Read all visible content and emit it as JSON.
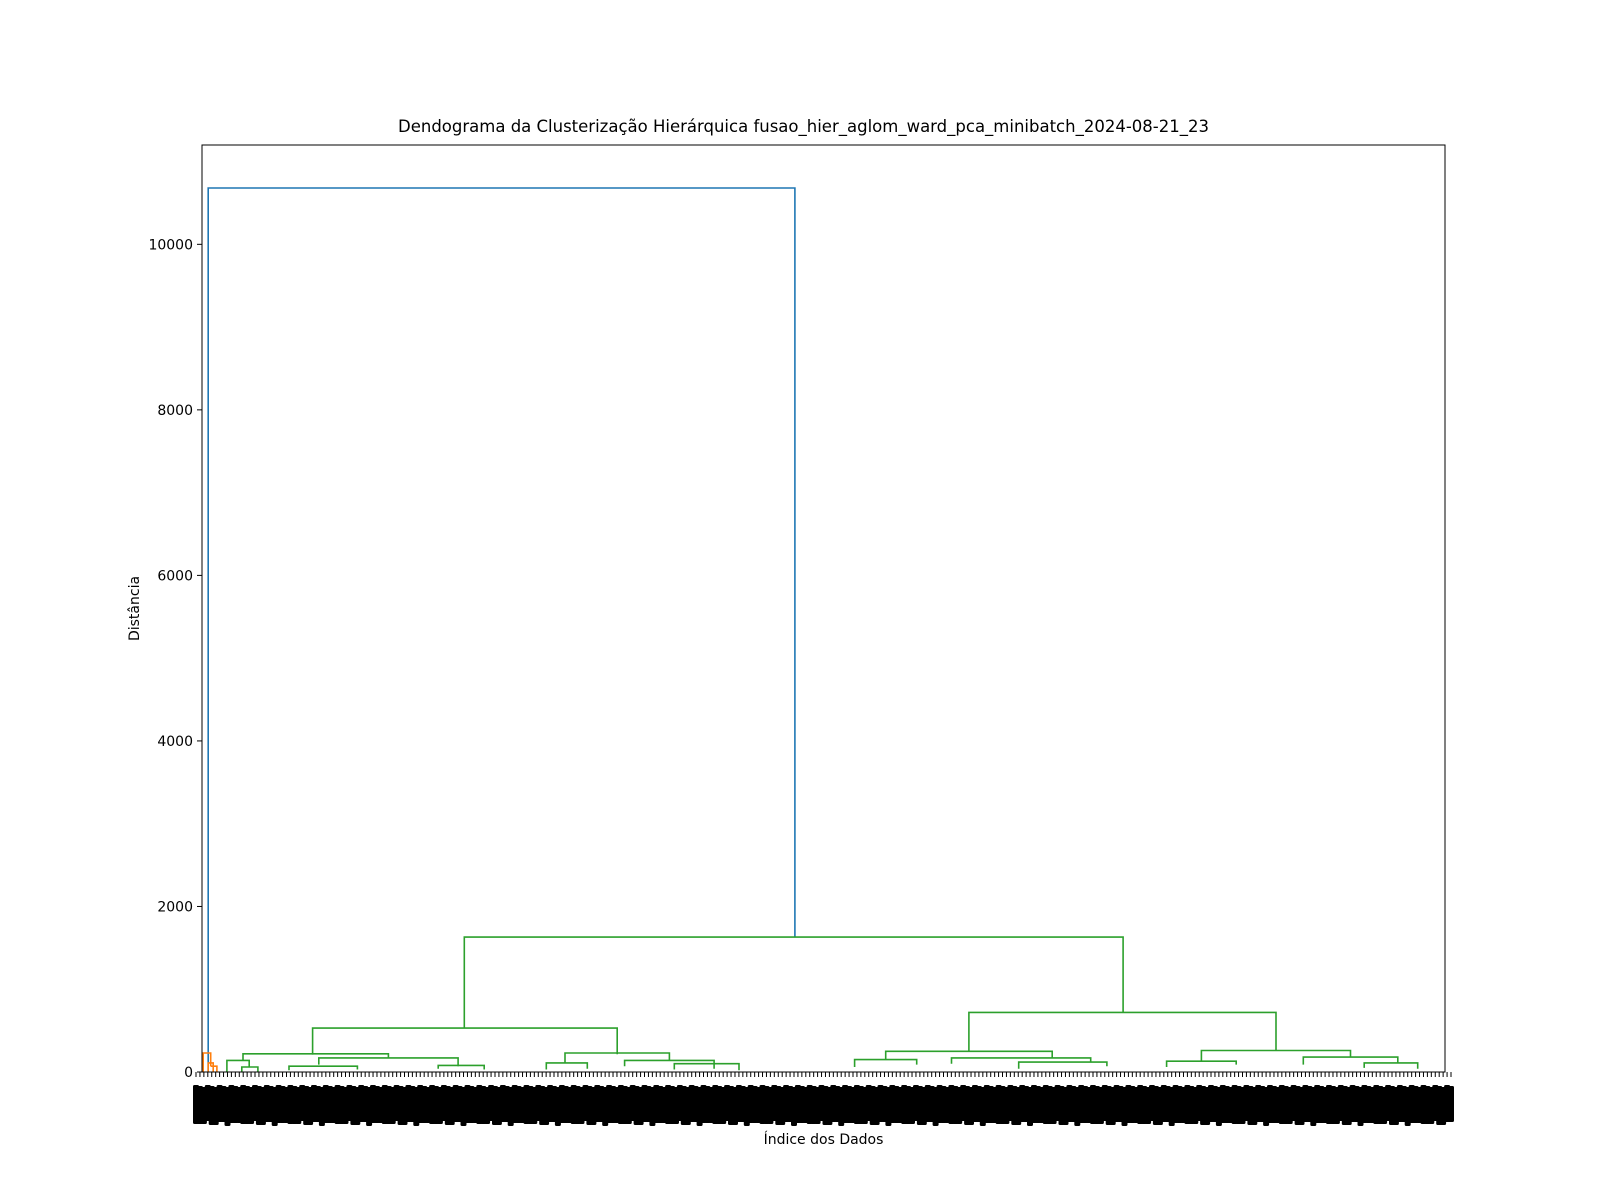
{
  "chart_data": {
    "type": "dendrogram",
    "title": "Dendograma da Clusterização Hierárquica fusao_hier_aglom_ward_pca_minibatch_2024-08-21_23",
    "xlabel": "Índice dos Dados",
    "ylabel": "Distância",
    "ylim": [
      0,
      11200
    ],
    "yticks": [
      0,
      2000,
      4000,
      6000,
      8000,
      10000
    ],
    "xrange": [
      0,
      1000
    ],
    "grid": false,
    "leaf_labels_note": "leaf index labels overlap into an unreadable dark band",
    "colors": {
      "above_threshold": "#1f77b4",
      "cluster_1": "#ff7f0e",
      "cluster_2": "#2ca02c",
      "axes": "#000000",
      "leaf_labels": "#000000"
    },
    "links": [
      {
        "x": [
          5,
          5,
          477,
          477
        ],
        "y": [
          0,
          10680,
          10680,
          1630
        ],
        "color": "above_threshold"
      },
      {
        "x": [
          1,
          1,
          7,
          7
        ],
        "y": [
          0,
          230,
          230,
          70
        ],
        "color": "cluster_1"
      },
      {
        "x": [
          5,
          5,
          9,
          9
        ],
        "y": [
          0,
          110,
          110,
          0
        ],
        "color": "cluster_1"
      },
      {
        "x": [
          7,
          7,
          12,
          12
        ],
        "y": [
          70,
          70,
          70,
          0
        ],
        "color": "cluster_1"
      },
      {
        "x": [
          211,
          211,
          741,
          741
        ],
        "y": [
          530,
          1630,
          1630,
          720
        ],
        "color": "cluster_2"
      },
      {
        "x": [
          89,
          89,
          334,
          334
        ],
        "y": [
          210,
          530,
          530,
          215
        ],
        "color": "cluster_2"
      },
      {
        "x": [
          33,
          33,
          150,
          150
        ],
        "y": [
          140,
          220,
          220,
          170
        ],
        "color": "cluster_2"
      },
      {
        "x": [
          20,
          20,
          38,
          38
        ],
        "y": [
          0,
          140,
          140,
          60
        ],
        "color": "cluster_2"
      },
      {
        "x": [
          32,
          32,
          45,
          45
        ],
        "y": [
          0,
          60,
          60,
          0
        ],
        "color": "cluster_2"
      },
      {
        "x": [
          94,
          94,
          206,
          206
        ],
        "y": [
          90,
          170,
          170,
          70
        ],
        "color": "cluster_2"
      },
      {
        "x": [
          70,
          70,
          125,
          125
        ],
        "y": [
          20,
          70,
          70,
          30
        ],
        "color": "cluster_2"
      },
      {
        "x": [
          190,
          190,
          227,
          227
        ],
        "y": [
          40,
          80,
          80,
          30
        ],
        "color": "cluster_2"
      },
      {
        "x": [
          292,
          292,
          376,
          376
        ],
        "y": [
          110,
          230,
          230,
          140
        ],
        "color": "cluster_2"
      },
      {
        "x": [
          277,
          277,
          310,
          310
        ],
        "y": [
          30,
          110,
          110,
          40
        ],
        "color": "cluster_2"
      },
      {
        "x": [
          340,
          340,
          412,
          412
        ],
        "y": [
          70,
          140,
          140,
          40
        ],
        "color": "cluster_2"
      },
      {
        "x": [
          380,
          380,
          432,
          432
        ],
        "y": [
          30,
          100,
          100,
          20
        ],
        "color": "cluster_2"
      },
      {
        "x": [
          617,
          617,
          864,
          864
        ],
        "y": [
          250,
          720,
          720,
          260
        ],
        "color": "cluster_2"
      },
      {
        "x": [
          550,
          550,
          684,
          684
        ],
        "y": [
          150,
          250,
          250,
          170
        ],
        "color": "cluster_2"
      },
      {
        "x": [
          525,
          525,
          575,
          575
        ],
        "y": [
          60,
          150,
          150,
          90
        ],
        "color": "cluster_2"
      },
      {
        "x": [
          603,
          603,
          715,
          715
        ],
        "y": [
          100,
          170,
          170,
          120
        ],
        "color": "cluster_2"
      },
      {
        "x": [
          657,
          657,
          728,
          728
        ],
        "y": [
          40,
          120,
          120,
          70
        ],
        "color": "cluster_2"
      },
      {
        "x": [
          804,
          804,
          924,
          924
        ],
        "y": [
          130,
          260,
          260,
          180
        ],
        "color": "cluster_2"
      },
      {
        "x": [
          776,
          776,
          832,
          832
        ],
        "y": [
          60,
          130,
          130,
          90
        ],
        "color": "cluster_2"
      },
      {
        "x": [
          886,
          886,
          962,
          962
        ],
        "y": [
          90,
          180,
          180,
          110
        ],
        "color": "cluster_2"
      },
      {
        "x": [
          935,
          935,
          978,
          978
        ],
        "y": [
          50,
          110,
          110,
          40
        ],
        "color": "cluster_2"
      }
    ],
    "leaf_count": 320
  }
}
